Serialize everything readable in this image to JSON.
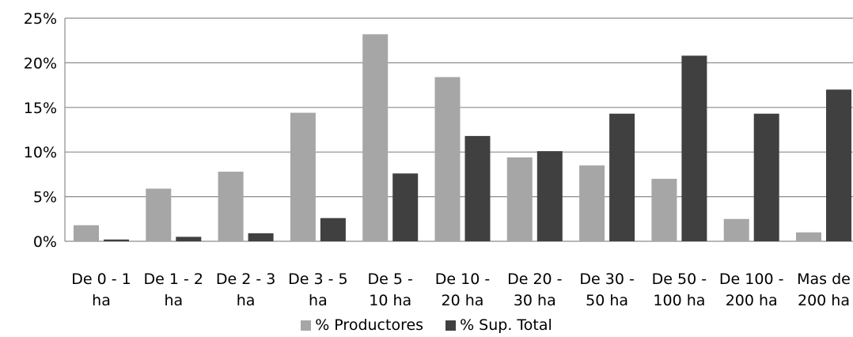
{
  "chart_data": {
    "type": "bar",
    "title": "",
    "xlabel": "",
    "ylabel": "",
    "categories": [
      [
        "De 0 - 1",
        "ha"
      ],
      [
        "De 1 - 2",
        "ha"
      ],
      [
        "De 2 - 3",
        "ha"
      ],
      [
        "De 3 - 5",
        "ha"
      ],
      [
        "De 5 -",
        "10 ha"
      ],
      [
        "De 10 -",
        "20 ha"
      ],
      [
        "De 20 -",
        "30 ha"
      ],
      [
        "De 30 -",
        "50 ha"
      ],
      [
        "De 50 -",
        "100 ha"
      ],
      [
        "De 100 -",
        "200 ha"
      ],
      [
        "Mas de",
        "200 ha"
      ]
    ],
    "series": [
      {
        "name": "% Productores",
        "color": "#a6a6a6",
        "values": [
          1.8,
          5.9,
          7.8,
          14.4,
          23.2,
          18.4,
          9.4,
          8.5,
          7.0,
          2.5,
          1.0
        ]
      },
      {
        "name": "% Sup. Total",
        "color": "#404040",
        "values": [
          0.2,
          0.5,
          0.9,
          2.6,
          7.6,
          11.8,
          10.1,
          14.3,
          20.8,
          14.3,
          17.0
        ]
      }
    ],
    "ylim": [
      0,
      25
    ],
    "yticks": [
      0,
      5,
      10,
      15,
      20,
      25
    ],
    "ytick_labels": [
      "0%",
      "5%",
      "10%",
      "15%",
      "20%",
      "25%"
    ],
    "grid": true,
    "legend": "bottom"
  }
}
